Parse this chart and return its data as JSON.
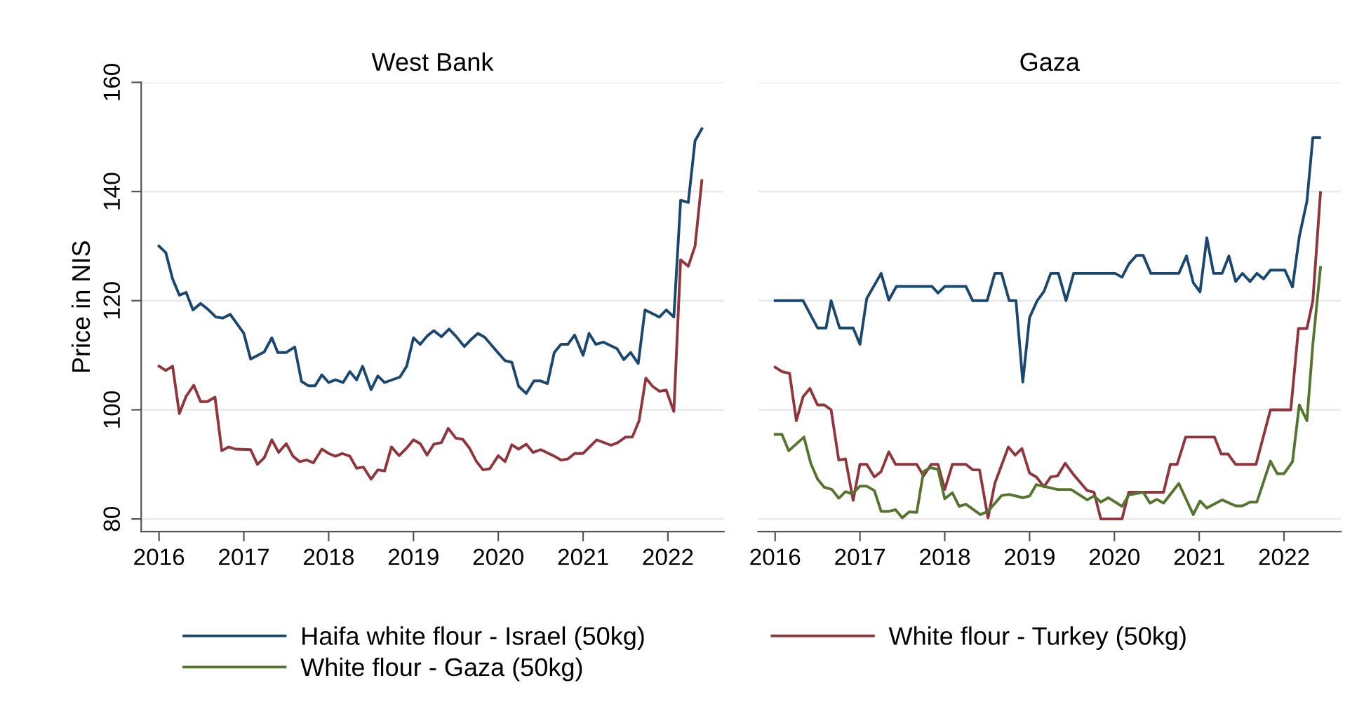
{
  "chart_data": [
    {
      "type": "line",
      "title": "West Bank",
      "ylabel": "Price in NIS",
      "xlim": [
        2015.79,
        2022.66
      ],
      "xticks": [
        2016,
        2017,
        2018,
        2019,
        2020,
        2021,
        2022
      ],
      "ylim": [
        77.7,
        160
      ],
      "yticks": [
        80,
        100,
        120,
        140,
        160
      ],
      "grid": "y",
      "legend": "bottom",
      "series": [
        {
          "name": "Haifa white flour - Israel (50kg)",
          "color": "#1a476f",
          "x": [
            2016.0,
            2016.08,
            2016.16,
            2016.24,
            2016.32,
            2016.4,
            2016.49,
            2016.57,
            2016.67,
            2016.75,
            2016.84,
            2017.0,
            2017.08,
            2017.24,
            2017.33,
            2017.4,
            2017.5,
            2017.6,
            2017.68,
            2017.76,
            2017.84,
            2017.92,
            2018.0,
            2018.08,
            2018.17,
            2018.25,
            2018.33,
            2018.4,
            2018.5,
            2018.58,
            2018.66,
            2018.84,
            2018.92,
            2019.0,
            2019.08,
            2019.16,
            2019.24,
            2019.33,
            2019.42,
            2019.5,
            2019.6,
            2019.68,
            2019.76,
            2019.84,
            2020.0,
            2020.08,
            2020.16,
            2020.24,
            2020.33,
            2020.42,
            2020.5,
            2020.58,
            2020.66,
            2020.74,
            2020.82,
            2020.9,
            2021.0,
            2021.07,
            2021.15,
            2021.24,
            2021.4,
            2021.48,
            2021.56,
            2021.65,
            2021.73,
            2021.9,
            2021.98,
            2022.07,
            2022.15,
            2022.24,
            2022.32,
            2022.4
          ],
          "values": [
            130,
            128.8,
            124,
            121,
            121.5,
            118.3,
            119.5,
            118.5,
            117,
            116.8,
            117.5,
            114,
            109.3,
            110.6,
            113.2,
            110.5,
            110.5,
            111.5,
            105.2,
            104.4,
            104.4,
            106.4,
            105,
            105.5,
            105,
            107,
            105.5,
            108,
            103.7,
            106.2,
            105,
            106,
            108,
            113.2,
            112,
            113.5,
            114.5,
            113.4,
            114.8,
            113.5,
            111.6,
            112.9,
            114,
            113.3,
            110.4,
            109,
            108.7,
            104.3,
            103,
            105.3,
            105.3,
            104.8,
            110.5,
            112,
            112,
            113.7,
            110,
            114,
            112,
            112.4,
            111.2,
            109.2,
            110.5,
            108.5,
            118.3,
            117,
            118.3,
            117,
            138.4,
            138,
            149.3,
            151.5
          ]
        },
        {
          "name": "White flour - Turkey (50kg)",
          "color": "#90353b",
          "x": [
            2016.0,
            2016.08,
            2016.16,
            2016.24,
            2016.32,
            2016.41,
            2016.49,
            2016.57,
            2016.66,
            2016.74,
            2016.82,
            2016.9,
            2017.08,
            2017.16,
            2017.24,
            2017.33,
            2017.41,
            2017.5,
            2017.58,
            2017.66,
            2017.74,
            2017.82,
            2017.92,
            2018.0,
            2018.08,
            2018.16,
            2018.25,
            2018.33,
            2018.41,
            2018.5,
            2018.58,
            2018.66,
            2018.74,
            2018.83,
            2018.92,
            2019.0,
            2019.08,
            2019.16,
            2019.24,
            2019.33,
            2019.41,
            2019.5,
            2019.58,
            2019.66,
            2019.74,
            2019.82,
            2019.9,
            2020.0,
            2020.08,
            2020.16,
            2020.24,
            2020.33,
            2020.41,
            2020.5,
            2020.66,
            2020.74,
            2020.82,
            2020.9,
            2021.0,
            2021.16,
            2021.33,
            2021.41,
            2021.5,
            2021.58,
            2021.66,
            2021.74,
            2021.82,
            2021.9,
            2021.98,
            2022.07,
            2022.15,
            2022.24,
            2022.32,
            2022.4
          ],
          "values": [
            108,
            107.2,
            108,
            99.3,
            102.5,
            104.5,
            101.5,
            101.5,
            102.3,
            92.5,
            93.2,
            92.8,
            92.7,
            90,
            91.2,
            94.5,
            92.2,
            93.8,
            91.5,
            90.5,
            90.8,
            90.3,
            92.8,
            92,
            91.5,
            92,
            91.5,
            89.3,
            89.5,
            87.3,
            89,
            88.8,
            93.2,
            91.6,
            93,
            94.5,
            93.8,
            91.7,
            93.7,
            94,
            96.6,
            94.8,
            94.6,
            93,
            90.6,
            89,
            89.2,
            91.6,
            90.5,
            93.6,
            92.8,
            93.7,
            92.2,
            92.7,
            91.5,
            90.8,
            91,
            92,
            92,
            94.5,
            93.5,
            94,
            95,
            95,
            98,
            105.8,
            104.3,
            103.4,
            103.6,
            99.7,
            127.5,
            126.3,
            130,
            142
          ]
        }
      ]
    },
    {
      "type": "line",
      "title": "Gaza",
      "xlim": [
        2015.8,
        2022.67
      ],
      "xticks": [
        2016,
        2017,
        2018,
        2019,
        2020,
        2021,
        2022
      ],
      "ylim": [
        77.7,
        160
      ],
      "yticks": [
        80,
        100,
        120,
        140,
        160
      ],
      "grid": "y",
      "legend": "bottom",
      "tick_labels": "x",
      "series": [
        {
          "color": "#1a476f",
          "x": [
            2016.0,
            2016.33,
            2016.5,
            2016.6,
            2016.66,
            2016.76,
            2016.92,
            2017.0,
            2017.08,
            2017.25,
            2017.34,
            2017.43,
            2017.85,
            2017.92,
            2018.0,
            2018.25,
            2018.33,
            2018.5,
            2018.59,
            2018.67,
            2018.76,
            2018.84,
            2018.92,
            2019.0,
            2019.09,
            2019.17,
            2019.25,
            2019.34,
            2019.43,
            2019.52,
            2020.01,
            2020.09,
            2020.17,
            2020.26,
            2020.34,
            2020.43,
            2020.76,
            2020.85,
            2020.93,
            2021.01,
            2021.09,
            2021.17,
            2021.27,
            2021.35,
            2021.43,
            2021.51,
            2021.6,
            2021.68,
            2021.76,
            2021.84,
            2022.01,
            2022.1,
            2022.18,
            2022.27,
            2022.34,
            2022.42
          ],
          "values": [
            120,
            120,
            115,
            115,
            120,
            115,
            115,
            112,
            120.4,
            125,
            120.1,
            122.6,
            122.6,
            121.4,
            122.6,
            122.6,
            120,
            120,
            125,
            125,
            120,
            120,
            105.1,
            116.9,
            120,
            121.7,
            125,
            125,
            120,
            125,
            125,
            124.3,
            126.7,
            128.3,
            128.3,
            125,
            125,
            128.2,
            123.3,
            121.6,
            131.5,
            125,
            125,
            128.2,
            123.5,
            125,
            123.5,
            125,
            124,
            125.6,
            125.6,
            122.5,
            131.7,
            138.2,
            149.9,
            149.9
          ]
        },
        {
          "color": "#90353b",
          "x": [
            2016.0,
            2016.08,
            2016.17,
            2016.25,
            2016.33,
            2016.41,
            2016.5,
            2016.58,
            2016.66,
            2016.75,
            2016.83,
            2016.92,
            2017.0,
            2017.08,
            2017.17,
            2017.25,
            2017.34,
            2017.42,
            2017.67,
            2017.75,
            2017.84,
            2017.92,
            2018.0,
            2018.09,
            2018.25,
            2018.33,
            2018.41,
            2018.51,
            2018.59,
            2018.75,
            2018.83,
            2018.91,
            2019.0,
            2019.08,
            2019.17,
            2019.25,
            2019.33,
            2019.42,
            2019.52,
            2019.68,
            2019.76,
            2019.84,
            2020.09,
            2020.17,
            2020.58,
            2020.66,
            2020.74,
            2020.84,
            2021.18,
            2021.26,
            2021.34,
            2021.43,
            2021.67,
            2021.84,
            2022.08,
            2022.17,
            2022.27,
            2022.34,
            2022.43
          ],
          "values": [
            107.8,
            107,
            106.7,
            98,
            102.4,
            103.9,
            100.9,
            100.9,
            100,
            90.8,
            91,
            83.4,
            90,
            90,
            87.7,
            88.7,
            92.3,
            90,
            90,
            87.9,
            90,
            90,
            85.4,
            90,
            90,
            89,
            89,
            80.2,
            86.5,
            93.2,
            91.7,
            92.9,
            88.4,
            87.7,
            85.9,
            87.7,
            87.9,
            90.2,
            88.1,
            85.2,
            84.9,
            80,
            80,
            84.9,
            84.9,
            90,
            90,
            95,
            95,
            91.9,
            91.9,
            90,
            90,
            100,
            100,
            114.9,
            114.9,
            120,
            139.8
          ]
        },
        {
          "name": "White flour - Gaza (50kg)",
          "color": "#55752f",
          "x": [
            2016.0,
            2016.08,
            2016.16,
            2016.34,
            2016.42,
            2016.5,
            2016.58,
            2016.67,
            2016.75,
            2016.83,
            2016.91,
            2017.0,
            2017.08,
            2017.17,
            2017.25,
            2017.34,
            2017.42,
            2017.5,
            2017.58,
            2017.67,
            2017.75,
            2017.83,
            2017.92,
            2018.0,
            2018.09,
            2018.17,
            2018.25,
            2018.42,
            2018.51,
            2018.67,
            2018.76,
            2018.92,
            2019.0,
            2019.08,
            2019.33,
            2019.49,
            2019.68,
            2019.76,
            2019.84,
            2019.93,
            2020.09,
            2020.17,
            2020.34,
            2020.42,
            2020.5,
            2020.58,
            2020.76,
            2020.93,
            2021.01,
            2021.09,
            2021.27,
            2021.43,
            2021.51,
            2021.6,
            2021.68,
            2021.84,
            2021.92,
            2022.0,
            2022.1,
            2022.18,
            2022.27,
            2022.34,
            2022.43
          ],
          "values": [
            95.5,
            95.5,
            92.5,
            95,
            90.2,
            87.3,
            85.8,
            85.4,
            83.8,
            85,
            84.6,
            86,
            86,
            85.2,
            81.4,
            81.4,
            81.7,
            80.2,
            81.3,
            81.2,
            88.7,
            89.4,
            89.1,
            83.7,
            84.8,
            82.3,
            82.7,
            80.8,
            81.4,
            84.3,
            84.5,
            83.9,
            84.2,
            86.3,
            85.4,
            85.4,
            83.5,
            84.2,
            83.1,
            83.9,
            82.3,
            84.4,
            84.9,
            82.9,
            83.6,
            82.9,
            86.5,
            80.8,
            83.3,
            82,
            83.5,
            82.4,
            82.4,
            83.1,
            83.1,
            90.6,
            88.3,
            88.3,
            90.5,
            100.9,
            98,
            112,
            126.1
          ]
        }
      ]
    }
  ]
}
